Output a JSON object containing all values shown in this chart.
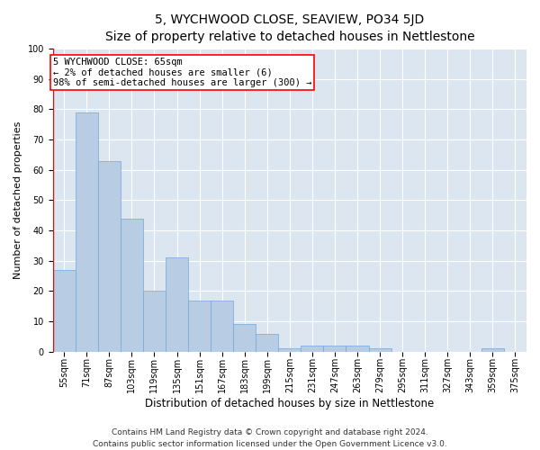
{
  "title": "5, WYCHWOOD CLOSE, SEAVIEW, PO34 5JD",
  "subtitle": "Size of property relative to detached houses in Nettlestone",
  "xlabel": "Distribution of detached houses by size in Nettlestone",
  "ylabel": "Number of detached properties",
  "categories": [
    "55sqm",
    "71sqm",
    "87sqm",
    "103sqm",
    "119sqm",
    "135sqm",
    "151sqm",
    "167sqm",
    "183sqm",
    "199sqm",
    "215sqm",
    "231sqm",
    "247sqm",
    "263sqm",
    "279sqm",
    "295sqm",
    "311sqm",
    "327sqm",
    "343sqm",
    "359sqm",
    "375sqm"
  ],
  "values": [
    27,
    79,
    63,
    44,
    20,
    31,
    17,
    17,
    9,
    6,
    1,
    2,
    2,
    2,
    1,
    0,
    0,
    0,
    0,
    1,
    0
  ],
  "bar_color": "#b8cce4",
  "bar_edge_color": "#6fa8dc",
  "background_color": "#dce6f1",
  "grid_color": "#ffffff",
  "annotation_line1": "5 WYCHWOOD CLOSE: 65sqm",
  "annotation_line2": "← 2% of detached houses are smaller (6)",
  "annotation_line3": "98% of semi-detached houses are larger (300) →",
  "ylim": [
    0,
    100
  ],
  "yticks": [
    0,
    10,
    20,
    30,
    40,
    50,
    60,
    70,
    80,
    90,
    100
  ],
  "footer_line1": "Contains HM Land Registry data © Crown copyright and database right 2024.",
  "footer_line2": "Contains public sector information licensed under the Open Government Licence v3.0.",
  "title_fontsize": 10,
  "subtitle_fontsize": 9,
  "xlabel_fontsize": 8.5,
  "ylabel_fontsize": 8,
  "annotation_fontsize": 7.5,
  "footer_fontsize": 6.5,
  "tick_fontsize": 7
}
